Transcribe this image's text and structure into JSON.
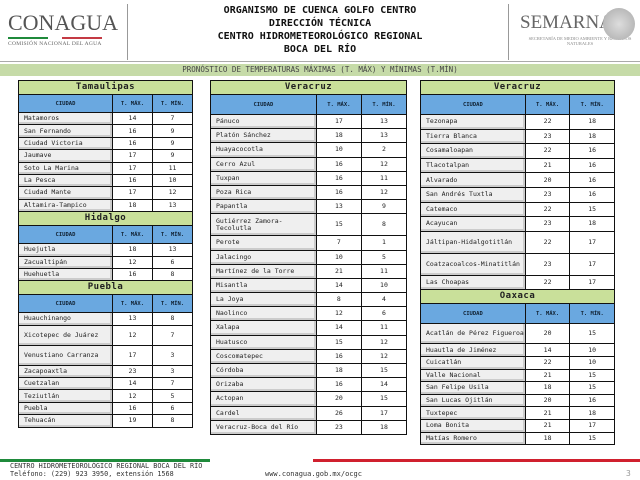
{
  "header": {
    "logo_left": "CONAGUA",
    "logo_left_sub": "COMISIÓN NACIONAL DEL AGUA",
    "titles": [
      "ORGANISMO DE CUENCA GOLFO CENTRO",
      "DIRECCIÓN TÉCNICA",
      "CENTRO HIDROMETEOROLÓGICO REGIONAL",
      "BOCA DEL RÍO"
    ],
    "logo_right": "SEMARNAT",
    "logo_right_sub": "SECRETARÍA DE MEDIO AMBIENTE Y RECURSOS NATURALES"
  },
  "banner": "PRONÓSTICO DE TEMPERATURAS MÁXIMAS (T. MÁX) Y MÍNIMAS (T.MÍN)",
  "columns": {
    "city": "CIUDAD",
    "tmax": "T. MÁX.",
    "tmin": "T. MÍN."
  },
  "sections": [
    {
      "state": "Tamaulipas",
      "rows": [
        [
          "Matamoros",
          "14",
          "7"
        ],
        [
          "San Fernando",
          "16",
          "9"
        ],
        [
          "Ciudad Victoria",
          "16",
          "9"
        ],
        [
          "Jaumave",
          "17",
          "9"
        ],
        [
          "Soto La Marina",
          "17",
          "11"
        ],
        [
          "La Pesca",
          "16",
          "10"
        ],
        [
          "Ciudad Mante",
          "17",
          "12"
        ],
        [
          "Altamira-Tampico",
          "18",
          "13"
        ]
      ]
    },
    {
      "state": "Hidalgo",
      "rows": [
        [
          "Huejutla",
          "18",
          "13"
        ],
        [
          "Zacualtipán",
          "12",
          "6"
        ],
        [
          "Huehuetla",
          "16",
          "8"
        ]
      ]
    },
    {
      "state": "Puebla",
      "rows": [
        [
          "Huauchinango",
          "13",
          "8"
        ],
        [
          "Xicotepec de Juárez",
          "12",
          "7"
        ],
        [
          "Venustiano Carranza",
          "17",
          "3"
        ],
        [
          "Zacapoaxtla",
          "23",
          "3"
        ],
        [
          "Cuetzalan",
          "14",
          "7"
        ],
        [
          "Teziutlán",
          "12",
          "5"
        ],
        [
          "Puebla",
          "16",
          "6"
        ],
        [
          "Tehuacán",
          "19",
          "8"
        ]
      ]
    },
    {
      "state": "Veracruz",
      "rows": [
        [
          "Pánuco",
          "17",
          "13"
        ],
        [
          "Platón Sánchez",
          "18",
          "13"
        ],
        [
          "Huayacocotla",
          "10",
          "2"
        ],
        [
          "Cerro Azul",
          "16",
          "12"
        ],
        [
          "Tuxpan",
          "16",
          "11"
        ],
        [
          "Poza Rica",
          "16",
          "12"
        ],
        [
          "Papantla",
          "13",
          "9"
        ],
        [
          "Gutiérrez Zamora-Tecolutla",
          "15",
          "8"
        ],
        [
          "Perote",
          "7",
          "1"
        ],
        [
          "Jalacingo",
          "10",
          "5"
        ],
        [
          "Martínez de la Torre",
          "21",
          "11"
        ],
        [
          "Misantla",
          "14",
          "10"
        ],
        [
          "La Joya",
          "8",
          "4"
        ],
        [
          "Naolinco",
          "12",
          "6"
        ],
        [
          "Xalapa",
          "14",
          "11"
        ],
        [
          "Huatusco",
          "15",
          "12"
        ],
        [
          "Coscomatepec",
          "16",
          "12"
        ],
        [
          "Córdoba",
          "18",
          "15"
        ],
        [
          "Orizaba",
          "16",
          "14"
        ],
        [
          "Actopan",
          "20",
          "15"
        ],
        [
          "Cardel",
          "26",
          "17"
        ],
        [
          "Veracruz-Boca del Río",
          "23",
          "18"
        ]
      ]
    },
    {
      "state": "Veracruz",
      "rows": [
        [
          "Tezonapa",
          "22",
          "18"
        ],
        [
          "Tierra Blanca",
          "23",
          "18"
        ],
        [
          "Cosamaloapan",
          "22",
          "16"
        ],
        [
          "Tlacotalpan",
          "21",
          "16"
        ],
        [
          "Alvarado",
          "20",
          "16"
        ],
        [
          "San Andrés Tuxtla",
          "23",
          "16"
        ],
        [
          "Catemaco",
          "22",
          "15"
        ],
        [
          "Acayucan",
          "23",
          "18"
        ],
        [
          "Jáltipan-Hidalgotitlán",
          "22",
          "17"
        ],
        [
          "Coatzacoalcos-Minatitlán",
          "23",
          "17"
        ],
        [
          "Las Choapas",
          "22",
          "17"
        ]
      ]
    },
    {
      "state": "Oaxaca",
      "rows": [
        [
          "Acatlán de Pérez Figueroa",
          "20",
          "15"
        ],
        [
          "Huautla de Jiménez",
          "14",
          "10"
        ],
        [
          "Cuicatlán",
          "22",
          "10"
        ],
        [
          "Valle Nacional",
          "21",
          "15"
        ],
        [
          "San Felipe Usila",
          "18",
          "15"
        ],
        [
          "San Lucas Ojitlán",
          "20",
          "16"
        ],
        [
          "Tuxtepec",
          "21",
          "18"
        ],
        [
          "Loma Bonita",
          "21",
          "17"
        ],
        [
          "Matías Romero",
          "18",
          "15"
        ]
      ]
    }
  ],
  "footer": {
    "line1": "CENTRO HIDROMETEOROLÓGICO REGIONAL BOCA DEL RÍO",
    "line2": "Teléfono: (229) 923 3950, extensión 1568",
    "url": "www.conagua.gob.mx/ocgc",
    "page": "3"
  }
}
